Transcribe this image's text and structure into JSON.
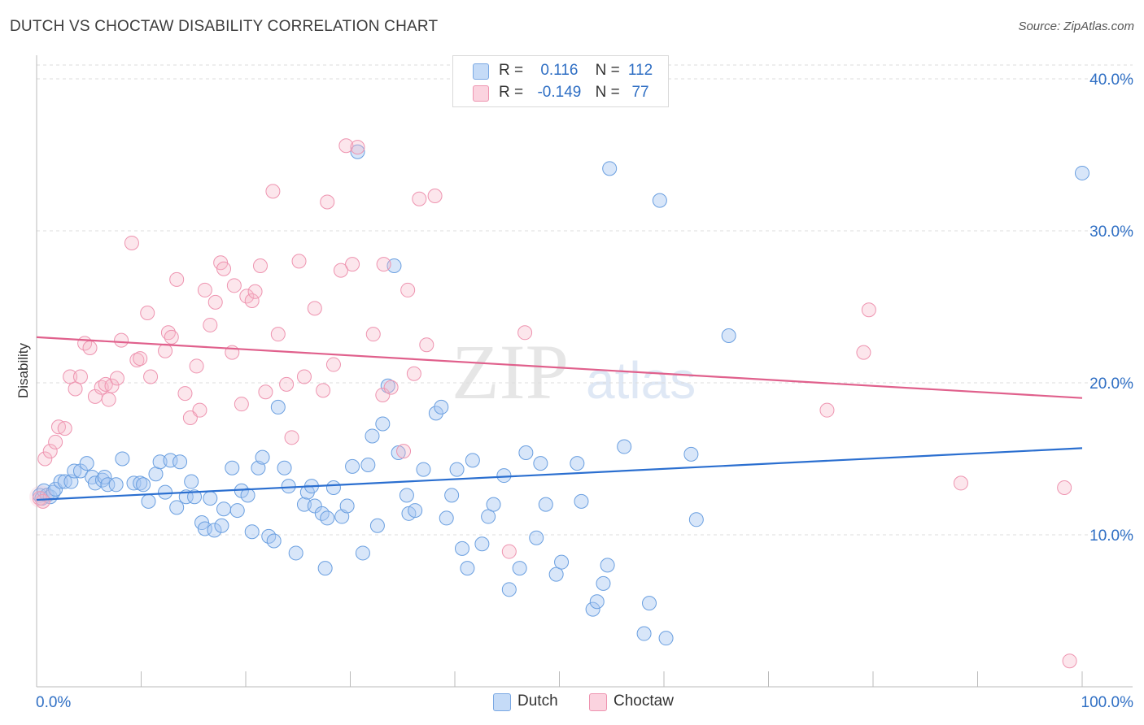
{
  "title": "DUTCH VS CHOCTAW DISABILITY CORRELATION CHART",
  "source": "Source: ZipAtlas.com",
  "watermark": {
    "zip": "ZIP",
    "atlas": "atlas"
  },
  "legend": {
    "rows": [
      {
        "r_label": "R =",
        "r_value": "0.116",
        "n_label": "N =",
        "n_value": "112",
        "color": "#a9c8f2"
      },
      {
        "r_label": "R =",
        "r_value": "-0.149",
        "n_label": "N =",
        "n_value": "77",
        "color": "#f5b8c9"
      }
    ]
  },
  "bottom_legend": [
    {
      "label": "Dutch",
      "color": "#a9c8f2"
    },
    {
      "label": "Choctaw",
      "color": "#f5b8c9"
    }
  ],
  "chart_data": {
    "type": "scatter",
    "title": "DUTCH VS CHOCTAW DISABILITY CORRELATION CHART",
    "xlabel": "",
    "ylabel": "Disability",
    "xlim": [
      0,
      100
    ],
    "ylim": [
      0,
      40
    ],
    "x_tick_labels": [
      "0.0%",
      "100.0%"
    ],
    "y_ticks": [
      10,
      20,
      30,
      40
    ],
    "y_tick_labels": [
      "10.0%",
      "20.0%",
      "30.0%",
      "40.0%"
    ],
    "grid": "horizontal dashed",
    "legend_placement": "top-center",
    "series": [
      {
        "name": "Dutch",
        "color": "#6a9fe0",
        "trend": {
          "x": [
            0,
            100
          ],
          "y": [
            12.3,
            15.7
          ],
          "color": "#2b6fd0"
        },
        "points": [
          [
            0.3,
            12.6
          ],
          [
            0.5,
            12.4
          ],
          [
            0.7,
            12.9
          ],
          [
            1.0,
            12.6
          ],
          [
            1.3,
            12.5
          ],
          [
            1.6,
            12.8
          ],
          [
            1.8,
            13.0
          ],
          [
            2.3,
            13.5
          ],
          [
            2.7,
            13.5
          ],
          [
            3.3,
            13.5
          ],
          [
            3.6,
            14.2
          ],
          [
            4.2,
            14.2
          ],
          [
            4.8,
            14.7
          ],
          [
            5.3,
            13.8
          ],
          [
            5.6,
            13.4
          ],
          [
            6.3,
            13.6
          ],
          [
            6.5,
            13.8
          ],
          [
            6.8,
            13.3
          ],
          [
            7.6,
            13.3
          ],
          [
            8.2,
            15.0
          ],
          [
            9.3,
            13.4
          ],
          [
            9.9,
            13.4
          ],
          [
            10.2,
            13.3
          ],
          [
            10.7,
            12.2
          ],
          [
            11.4,
            14.0
          ],
          [
            11.8,
            14.8
          ],
          [
            12.3,
            12.8
          ],
          [
            12.8,
            14.9
          ],
          [
            13.4,
            11.8
          ],
          [
            13.7,
            14.8
          ],
          [
            14.3,
            12.5
          ],
          [
            14.8,
            13.5
          ],
          [
            15.1,
            12.5
          ],
          [
            15.8,
            10.8
          ],
          [
            16.1,
            10.4
          ],
          [
            16.6,
            12.4
          ],
          [
            17.0,
            10.3
          ],
          [
            17.7,
            10.6
          ],
          [
            17.9,
            11.7
          ],
          [
            18.7,
            14.4
          ],
          [
            19.2,
            11.6
          ],
          [
            19.6,
            12.9
          ],
          [
            20.2,
            12.6
          ],
          [
            20.6,
            10.2
          ],
          [
            21.2,
            14.4
          ],
          [
            21.6,
            15.1
          ],
          [
            22.2,
            9.9
          ],
          [
            22.7,
            9.6
          ],
          [
            23.1,
            18.4
          ],
          [
            23.7,
            14.4
          ],
          [
            24.1,
            13.2
          ],
          [
            24.8,
            8.8
          ],
          [
            25.6,
            12.0
          ],
          [
            25.9,
            12.8
          ],
          [
            26.3,
            13.2
          ],
          [
            26.6,
            11.9
          ],
          [
            27.3,
            11.4
          ],
          [
            27.6,
            7.8
          ],
          [
            27.8,
            11.1
          ],
          [
            28.4,
            13.1
          ],
          [
            29.2,
            11.2
          ],
          [
            29.7,
            11.9
          ],
          [
            30.2,
            14.5
          ],
          [
            30.7,
            35.2
          ],
          [
            31.2,
            8.8
          ],
          [
            31.7,
            14.6
          ],
          [
            32.1,
            16.5
          ],
          [
            32.6,
            10.6
          ],
          [
            33.1,
            17.3
          ],
          [
            33.6,
            19.8
          ],
          [
            34.2,
            27.7
          ],
          [
            34.6,
            15.4
          ],
          [
            35.4,
            12.6
          ],
          [
            35.6,
            11.4
          ],
          [
            36.2,
            11.6
          ],
          [
            37.0,
            14.3
          ],
          [
            38.2,
            18.0
          ],
          [
            38.7,
            18.4
          ],
          [
            39.2,
            11.1
          ],
          [
            39.7,
            12.6
          ],
          [
            40.2,
            14.3
          ],
          [
            40.7,
            9.1
          ],
          [
            41.2,
            7.8
          ],
          [
            41.7,
            14.9
          ],
          [
            42.6,
            9.4
          ],
          [
            43.2,
            11.2
          ],
          [
            43.7,
            12.0
          ],
          [
            44.7,
            13.9
          ],
          [
            45.2,
            6.4
          ],
          [
            46.2,
            7.8
          ],
          [
            46.8,
            15.4
          ],
          [
            47.8,
            9.8
          ],
          [
            48.2,
            14.7
          ],
          [
            48.7,
            12.0
          ],
          [
            49.7,
            7.4
          ],
          [
            50.2,
            8.2
          ],
          [
            51.7,
            14.7
          ],
          [
            52.1,
            12.2
          ],
          [
            53.2,
            5.1
          ],
          [
            53.6,
            5.6
          ],
          [
            54.2,
            6.8
          ],
          [
            54.6,
            8.0
          ],
          [
            54.8,
            34.1
          ],
          [
            56.2,
            15.8
          ],
          [
            58.1,
            3.5
          ],
          [
            58.6,
            5.5
          ],
          [
            59.6,
            32.0
          ],
          [
            60.2,
            3.2
          ],
          [
            62.6,
            15.3
          ],
          [
            63.1,
            11.0
          ],
          [
            66.2,
            23.1
          ],
          [
            100.0,
            33.8
          ]
        ]
      },
      {
        "name": "Choctaw",
        "color": "#ee94b0",
        "trend": {
          "x": [
            0,
            100
          ],
          "y": [
            23.0,
            19.0
          ],
          "color": "#e0608c"
        },
        "points": [
          [
            0.3,
            12.4
          ],
          [
            0.6,
            12.2
          ],
          [
            0.8,
            15.0
          ],
          [
            1.3,
            15.5
          ],
          [
            1.8,
            16.1
          ],
          [
            2.1,
            17.1
          ],
          [
            2.7,
            17.0
          ],
          [
            3.2,
            20.4
          ],
          [
            3.7,
            19.6
          ],
          [
            4.2,
            20.4
          ],
          [
            4.6,
            22.6
          ],
          [
            5.1,
            22.3
          ],
          [
            5.6,
            19.1
          ],
          [
            6.2,
            19.7
          ],
          [
            6.6,
            19.9
          ],
          [
            6.9,
            18.9
          ],
          [
            7.2,
            19.8
          ],
          [
            7.7,
            20.3
          ],
          [
            8.1,
            22.8
          ],
          [
            9.1,
            29.2
          ],
          [
            9.6,
            21.5
          ],
          [
            9.9,
            21.6
          ],
          [
            10.6,
            24.6
          ],
          [
            10.9,
            20.4
          ],
          [
            12.3,
            22.1
          ],
          [
            12.6,
            23.3
          ],
          [
            12.9,
            23.0
          ],
          [
            13.4,
            26.8
          ],
          [
            14.2,
            19.3
          ],
          [
            14.7,
            17.7
          ],
          [
            15.3,
            21.1
          ],
          [
            15.6,
            18.2
          ],
          [
            16.1,
            26.1
          ],
          [
            16.6,
            23.8
          ],
          [
            17.1,
            25.3
          ],
          [
            17.6,
            27.9
          ],
          [
            17.9,
            27.5
          ],
          [
            18.7,
            22.0
          ],
          [
            18.9,
            26.4
          ],
          [
            19.6,
            18.6
          ],
          [
            20.1,
            25.7
          ],
          [
            20.6,
            25.4
          ],
          [
            20.9,
            26.0
          ],
          [
            21.4,
            27.7
          ],
          [
            21.9,
            19.4
          ],
          [
            22.6,
            32.6
          ],
          [
            23.1,
            23.2
          ],
          [
            23.9,
            19.9
          ],
          [
            24.4,
            16.4
          ],
          [
            25.1,
            28.0
          ],
          [
            25.6,
            20.4
          ],
          [
            26.6,
            24.9
          ],
          [
            27.4,
            19.5
          ],
          [
            27.8,
            31.9
          ],
          [
            28.4,
            21.2
          ],
          [
            29.1,
            27.4
          ],
          [
            29.6,
            35.6
          ],
          [
            30.2,
            27.8
          ],
          [
            30.7,
            35.5
          ],
          [
            32.2,
            23.2
          ],
          [
            33.1,
            19.2
          ],
          [
            33.2,
            27.8
          ],
          [
            33.9,
            19.7
          ],
          [
            35.1,
            15.5
          ],
          [
            35.5,
            26.1
          ],
          [
            36.1,
            20.6
          ],
          [
            36.6,
            32.1
          ],
          [
            37.3,
            22.5
          ],
          [
            38.1,
            32.3
          ],
          [
            45.2,
            8.9
          ],
          [
            46.7,
            23.3
          ],
          [
            75.6,
            18.2
          ],
          [
            79.1,
            22.0
          ],
          [
            79.6,
            24.8
          ],
          [
            88.4,
            13.4
          ],
          [
            98.3,
            13.1
          ],
          [
            98.8,
            1.7
          ]
        ]
      }
    ]
  }
}
